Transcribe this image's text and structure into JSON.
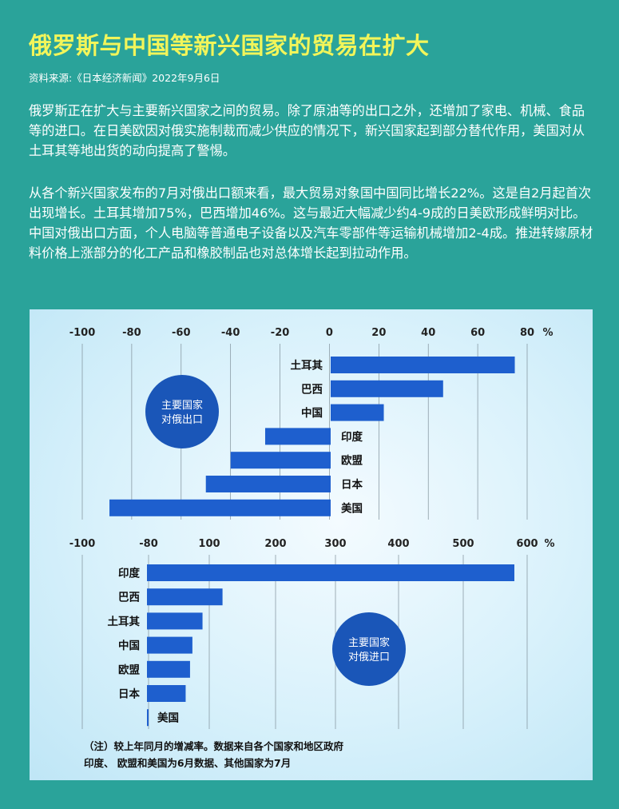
{
  "title": "俄罗斯与中国等新兴国家的贸易在扩大",
  "source": "资料来源:《日本经济新闻》2022年9月6日",
  "paragraphs": [
    "俄罗斯正在扩大与主要新兴国家之间的贸易。除了原油等的出口之外，还增加了家电、机械、食品等的进口。在日美欧因对俄实施制裁而减少供应的情况下，新兴国家起到部分替代作用，美国对从土耳其等地出货的动向提高了警惕。",
    "从各个新兴国家发布的7月对俄出口额来看，最大贸易对象国中国同比增长22%。这是自2月起首次出现增长。土耳其增加75%，巴西增加46%。这与最近大幅减少约4-9成的日美欧形成鲜明对比。中国对俄出口方面，个人电脑等普通电子设备以及汽车零部件等运输机械增加2-4成。推进转嫁原材料价格上涨部分的化工产品和橡胶制品也对总体增长起到拉动作用。"
  ],
  "notes": [
    "（注）较上年同月的增减率。数据来自各个国家和地区政府",
    "印度、 欧盟和美国为6月数据、其他国家为7月"
  ],
  "colors": {
    "background": "#2aa39a",
    "title": "#f2f55a",
    "bar": "#1e5fce",
    "badge": "#1a56b8",
    "axis": "#222222"
  },
  "chart_data": [
    {
      "type": "bar",
      "orientation": "horizontal",
      "badge": "主要国家\n对俄出口",
      "unit": "%",
      "categories": [
        "土耳其",
        "巴西",
        "中国",
        "印度",
        "欧盟",
        "日本",
        "美国"
      ],
      "values": [
        75,
        46,
        22,
        -26,
        -40,
        -50,
        -89
      ],
      "ticks": [
        -100,
        -80,
        -60,
        -40,
        -20,
        0,
        20,
        40,
        60,
        80
      ],
      "xlim": [
        -100,
        80
      ],
      "grid": true
    },
    {
      "type": "bar",
      "orientation": "horizontal",
      "badge": "主要国家\n对俄进口",
      "unit": "%",
      "categories": [
        "印度",
        "巴西",
        "土耳其",
        "中国",
        "欧盟",
        "日本",
        "美国"
      ],
      "values": [
        580,
        120,
        80,
        50,
        43,
        30,
        -80
      ],
      "ticks": [
        -100,
        -80,
        100,
        200,
        300,
        400,
        500,
        600
      ],
      "xlim": [
        -100,
        600
      ],
      "grid": true
    }
  ]
}
